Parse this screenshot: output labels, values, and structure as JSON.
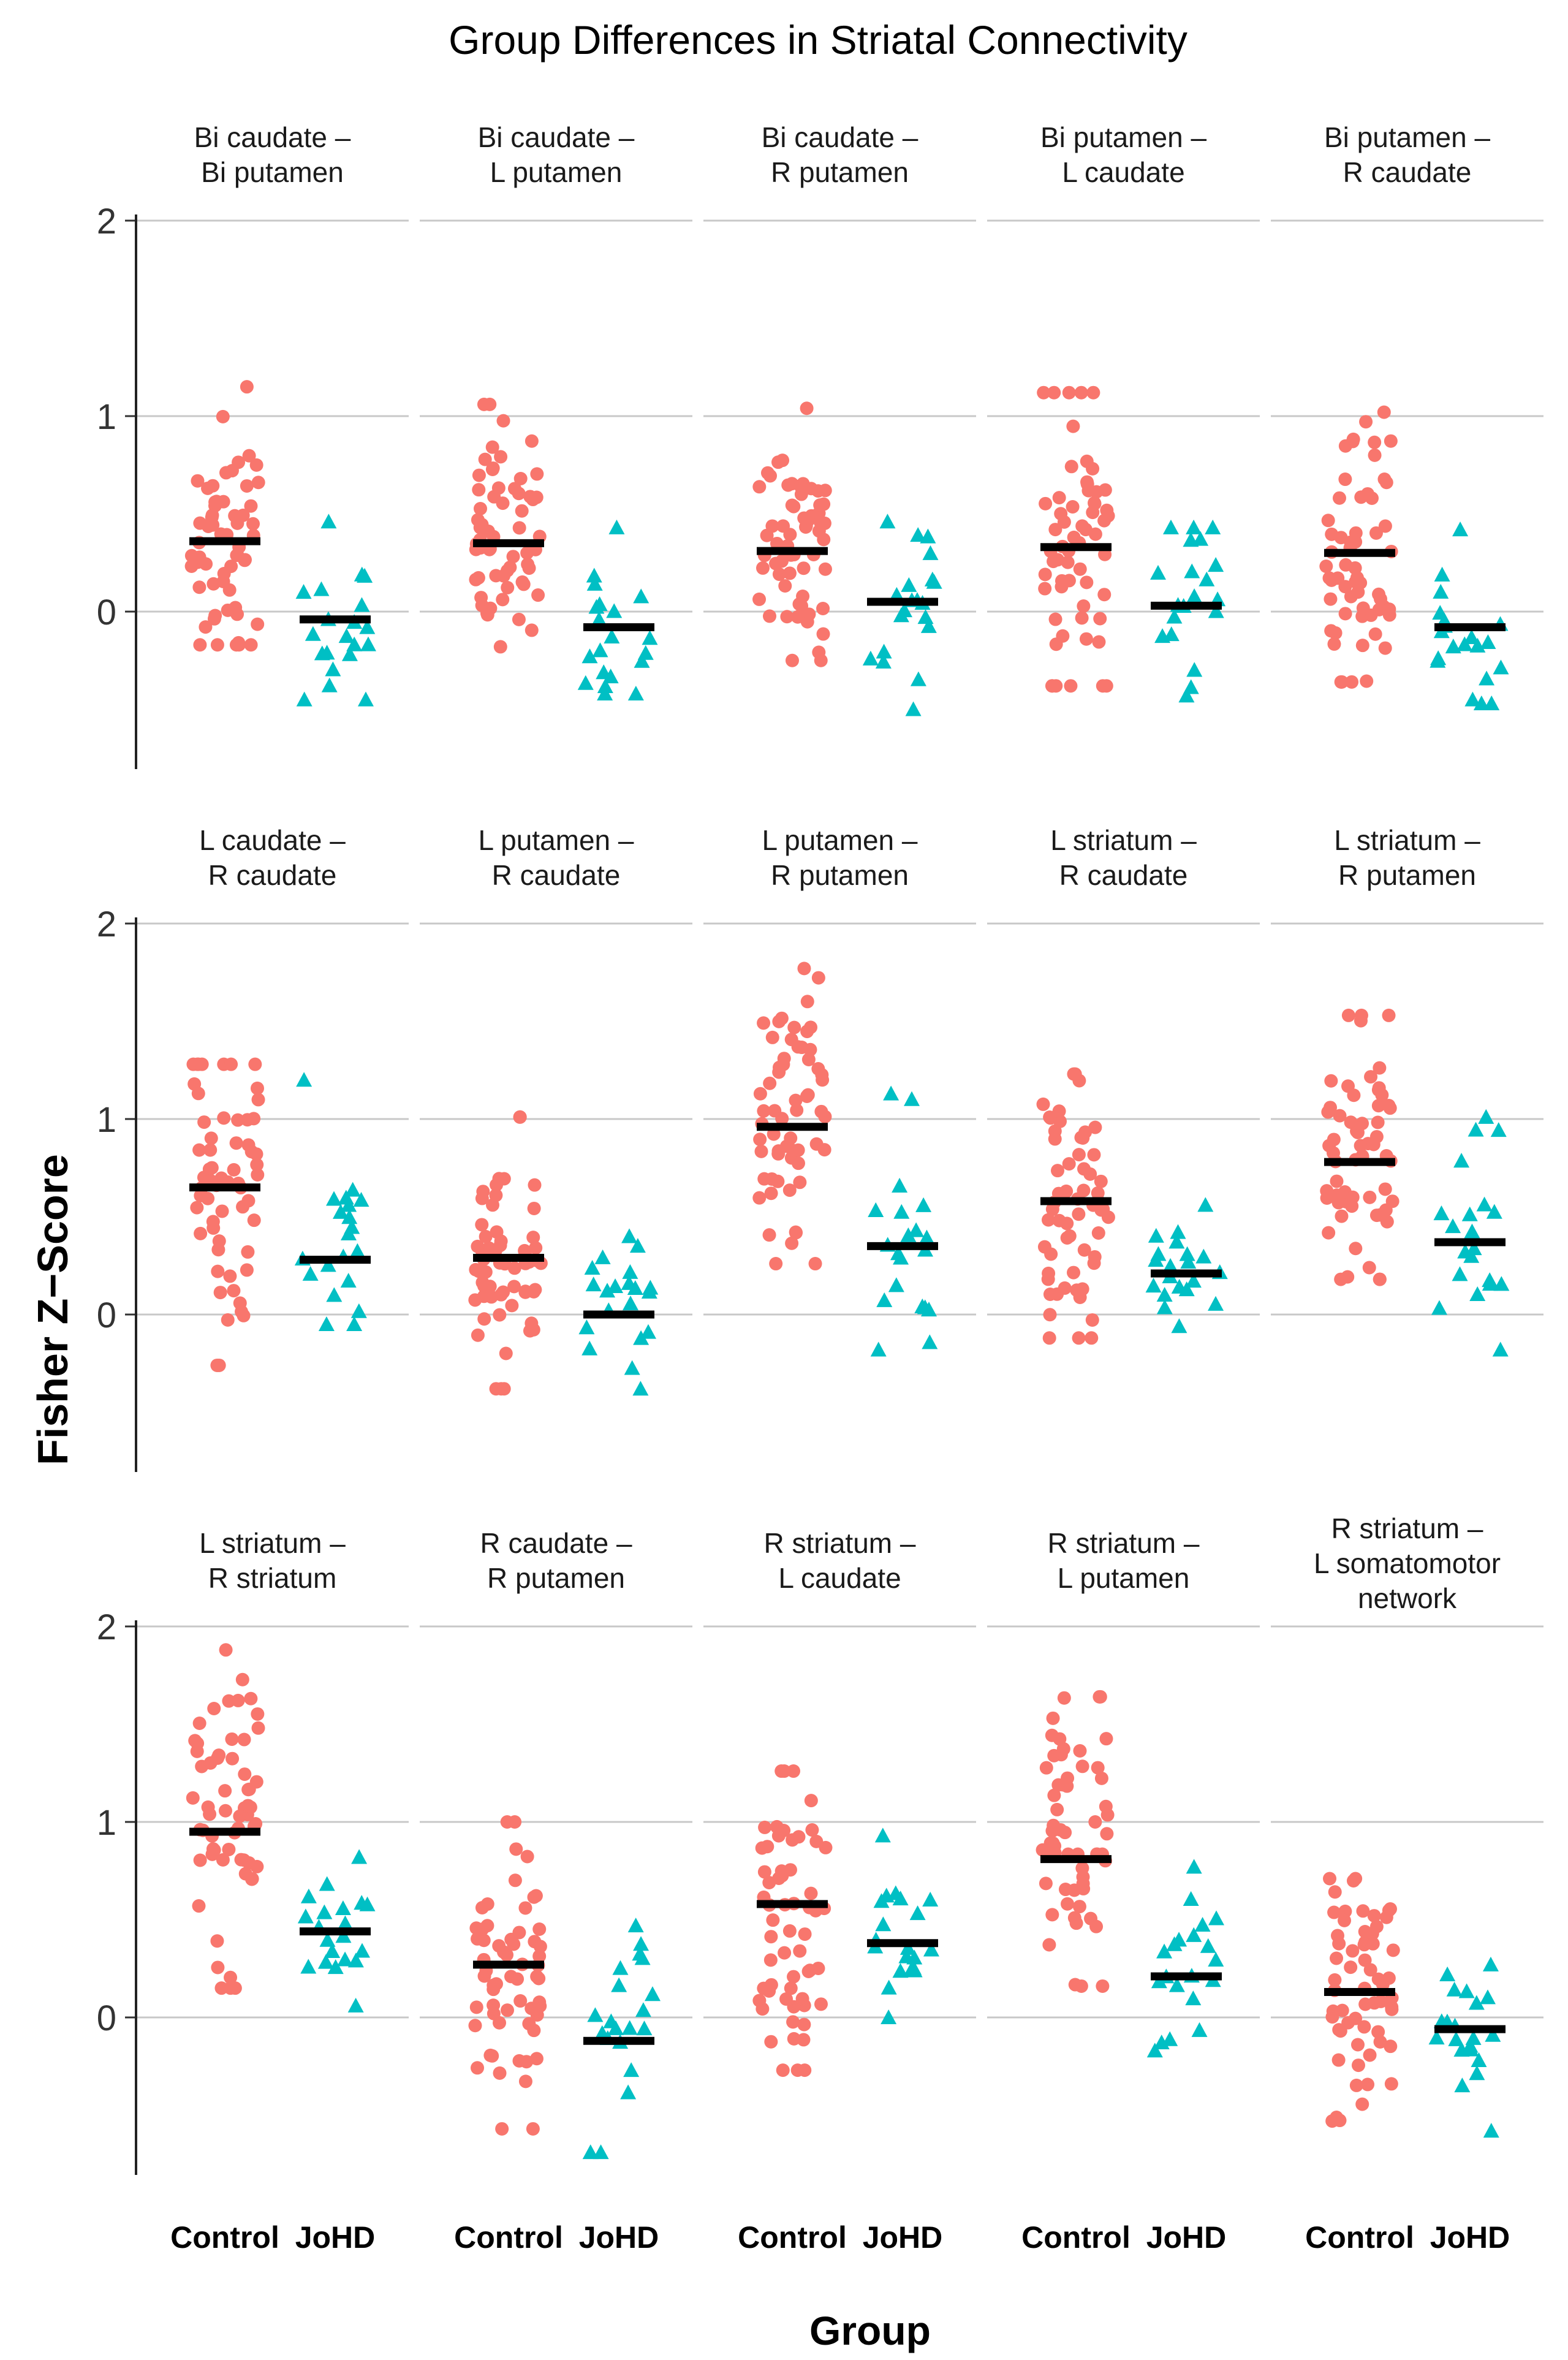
{
  "figure": {
    "title": "Group Differences in Striatal Connectivity",
    "xlabel": "Group",
    "ylabel": "Fisher Z−Score"
  },
  "chart_data": {
    "type": "scatter",
    "title": "Group Differences in Striatal Connectivity",
    "xlabel": "Group",
    "ylabel": "Fisher Z−Score",
    "ylim": [
      -0.85,
      2.05
    ],
    "y_ticks": [
      0,
      1,
      2
    ],
    "y_tick_labels": [
      "0",
      "1",
      "2"
    ],
    "categories": [
      "Control",
      "JoHD"
    ],
    "colors": {
      "Control": "#F8766D",
      "JoHD": "#00BFC4",
      "mean_bar": "#000000",
      "grid": "#C8C8C8"
    },
    "markers": {
      "Control": "circle",
      "JoHD": "triangle"
    },
    "panels": [
      {
        "title": [
          "Bi caudate –",
          "Bi putamen"
        ],
        "mean": {
          "Control": 0.36,
          "JoHD": -0.04
        },
        "range": {
          "Control": [
            -0.17,
            1.15
          ],
          "JoHD": [
            -0.45,
            0.46
          ]
        }
      },
      {
        "title": [
          "Bi caudate –",
          "L putamen"
        ],
        "mean": {
          "Control": 0.35,
          "JoHD": -0.08
        },
        "range": {
          "Control": [
            -0.18,
            1.06
          ],
          "JoHD": [
            -0.42,
            0.43
          ]
        }
      },
      {
        "title": [
          "Bi caudate –",
          "R putamen"
        ],
        "mean": {
          "Control": 0.31,
          "JoHD": 0.05
        },
        "range": {
          "Control": [
            -0.25,
            1.04
          ],
          "JoHD": [
            -0.5,
            0.46
          ]
        }
      },
      {
        "title": [
          "Bi putamen –",
          "L caudate"
        ],
        "mean": {
          "Control": 0.33,
          "JoHD": 0.03
        },
        "range": {
          "Control": [
            -0.38,
            1.12
          ],
          "JoHD": [
            -0.43,
            0.43
          ]
        }
      },
      {
        "title": [
          "Bi putamen –",
          "R caudate"
        ],
        "mean": {
          "Control": 0.3,
          "JoHD": -0.08
        },
        "range": {
          "Control": [
            -0.36,
            1.02
          ],
          "JoHD": [
            -0.47,
            0.42
          ]
        }
      },
      {
        "title": [
          "L caudate –",
          "R caudate"
        ],
        "mean": {
          "Control": 0.65,
          "JoHD": 0.28
        },
        "range": {
          "Control": [
            -0.26,
            1.28
          ],
          "JoHD": [
            -0.05,
            1.2
          ]
        }
      },
      {
        "title": [
          "L putamen –",
          "R caudate"
        ],
        "mean": {
          "Control": 0.29,
          "JoHD": 0.0
        },
        "range": {
          "Control": [
            -0.38,
            1.01
          ],
          "JoHD": [
            -0.38,
            0.4
          ]
        }
      },
      {
        "title": [
          "L putamen –",
          "R putamen"
        ],
        "mean": {
          "Control": 0.96,
          "JoHD": 0.35
        },
        "range": {
          "Control": [
            0.26,
            1.77
          ],
          "JoHD": [
            -0.18,
            1.13
          ]
        }
      },
      {
        "title": [
          "L striatum –",
          "R caudate"
        ],
        "mean": {
          "Control": 0.58,
          "JoHD": 0.21
        },
        "range": {
          "Control": [
            -0.12,
            1.23
          ],
          "JoHD": [
            -0.06,
            0.56
          ]
        }
      },
      {
        "title": [
          "L striatum –",
          "R putamen"
        ],
        "mean": {
          "Control": 0.78,
          "JoHD": 0.37
        },
        "range": {
          "Control": [
            0.18,
            1.53
          ],
          "JoHD": [
            -0.18,
            1.01
          ]
        }
      },
      {
        "title": [
          "L striatum –",
          "R striatum"
        ],
        "mean": {
          "Control": 0.95,
          "JoHD": 0.44
        },
        "range": {
          "Control": [
            0.15,
            1.88
          ],
          "JoHD": [
            0.06,
            0.82
          ]
        }
      },
      {
        "title": [
          "R caudate –",
          "R putamen"
        ],
        "mean": {
          "Control": 0.27,
          "JoHD": -0.12
        },
        "range": {
          "Control": [
            -0.57,
            1.0
          ],
          "JoHD": [
            -0.69,
            0.47
          ]
        }
      },
      {
        "title": [
          "R striatum –",
          "L caudate"
        ],
        "mean": {
          "Control": 0.58,
          "JoHD": 0.38
        },
        "range": {
          "Control": [
            -0.27,
            1.26
          ],
          "JoHD": [
            0.0,
            0.93
          ]
        }
      },
      {
        "title": [
          "R striatum –",
          "L putamen"
        ],
        "mean": {
          "Control": 0.81,
          "JoHD": 0.21
        },
        "range": {
          "Control": [
            0.16,
            1.64
          ],
          "JoHD": [
            -0.17,
            0.77
          ]
        }
      },
      {
        "title": [
          "R striatum –",
          "L somatomotor",
          "network"
        ],
        "mean": {
          "Control": 0.13,
          "JoHD": -0.06
        },
        "range": {
          "Control": [
            -0.53,
            0.71
          ],
          "JoHD": [
            -0.58,
            0.27
          ]
        }
      }
    ],
    "points_per_group": {
      "Control": 60,
      "JoHD": 20
    }
  }
}
